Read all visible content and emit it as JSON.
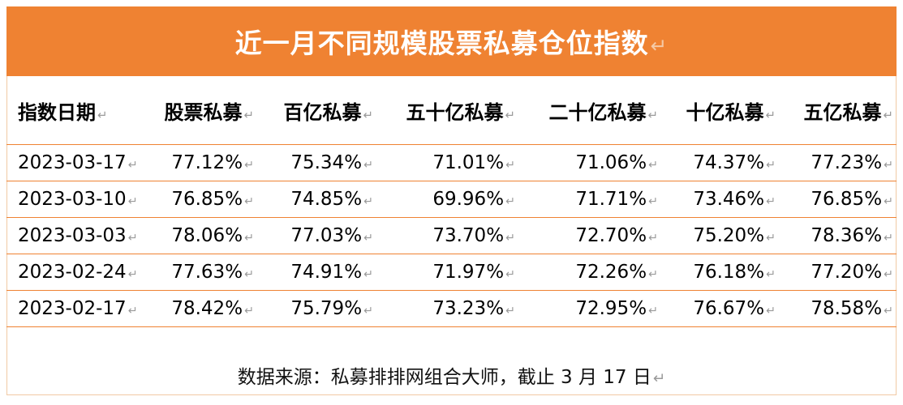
{
  "title": "近一月不同规模股票私募仓位指数",
  "paragraph_mark": "↵",
  "table": {
    "headers": [
      "指数日期",
      "股票私募",
      "百亿私募",
      "五十亿私募",
      "二十亿私募",
      "十亿私募",
      "五亿私募"
    ],
    "rows": [
      [
        "2023-03-17",
        "77.12%",
        "75.34%",
        "71.01%",
        "71.06%",
        "74.37%",
        "77.23%"
      ],
      [
        "2023-03-10",
        "76.85%",
        "74.85%",
        "69.96%",
        "71.71%",
        "73.46%",
        "76.85%"
      ],
      [
        "2023-03-03",
        "78.06%",
        "77.03%",
        "73.70%",
        "72.70%",
        "75.20%",
        "78.36%"
      ],
      [
        "2023-02-24",
        "77.63%",
        "74.91%",
        "71.97%",
        "72.26%",
        "76.18%",
        "77.20%"
      ],
      [
        "2023-02-17",
        "78.42%",
        "75.79%",
        "73.23%",
        "72.95%",
        "76.67%",
        "78.58%"
      ]
    ]
  },
  "source": "数据来源：私募排排网组合大师，截止 3 月 17 日",
  "colors": {
    "header_bg": "#ef8232",
    "header_text": "#ffffff",
    "row_border": "#ef8232"
  }
}
